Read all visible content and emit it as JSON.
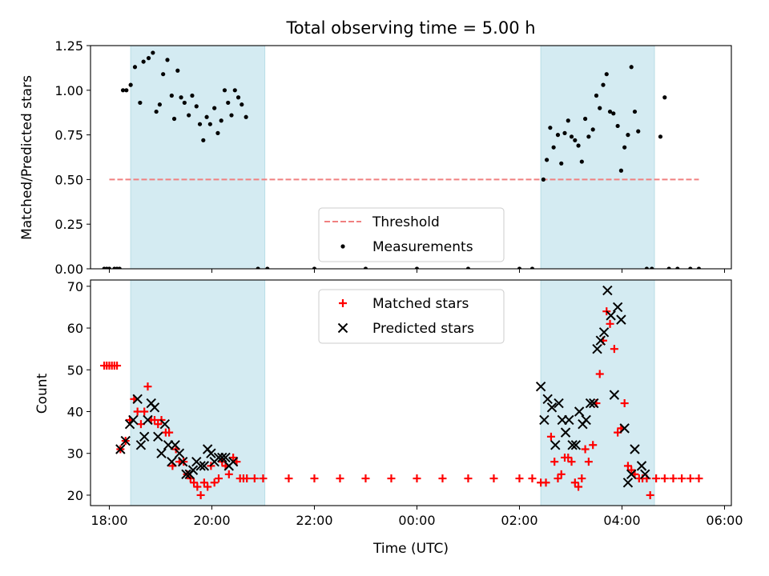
{
  "figure": {
    "title": "Total observing time = 5.00 h"
  },
  "chart_data": [
    {
      "type": "scatter",
      "ylabel": "Matched/Predicted stars",
      "xlabel": "",
      "x_axis": "time",
      "xlim": [
        "17:38",
        "06:08"
      ],
      "ylim": [
        0,
        1.25
      ],
      "yticks": [
        "0.00",
        "0.25",
        "0.50",
        "0.75",
        "1.00",
        "1.25"
      ],
      "xticks_labeled": false,
      "grid": false,
      "legend_position": "lower-center",
      "shaded_intervals": [
        [
          "18:25",
          "21:02"
        ],
        [
          "02:25",
          "04:38"
        ]
      ],
      "shade_color": "#d4ebf2",
      "series": [
        {
          "name": "Threshold",
          "kind": "line",
          "style": "dashed",
          "color": "#f08080",
          "x": [
            "18:00",
            "05:30"
          ],
          "y": [
            0.5,
            0.5
          ]
        },
        {
          "name": "Measurements",
          "kind": "points",
          "color": "#000000",
          "points": [
            [
              "17:54",
              0
            ],
            [
              "17:57",
              0
            ],
            [
              "18:00",
              0
            ],
            [
              "18:06",
              0
            ],
            [
              "18:09",
              0
            ],
            [
              "18:12",
              0
            ],
            [
              "18:16",
              1.0
            ],
            [
              "18:20",
              1.0
            ],
            [
              "18:25",
              1.03
            ],
            [
              "18:30",
              1.13
            ],
            [
              "18:36",
              0.93
            ],
            [
              "18:40",
              1.16
            ],
            [
              "18:46",
              1.18
            ],
            [
              "18:51",
              1.21
            ],
            [
              "18:55",
              0.88
            ],
            [
              "18:59",
              0.92
            ],
            [
              "19:03",
              1.09
            ],
            [
              "19:08",
              1.17
            ],
            [
              "19:13",
              0.97
            ],
            [
              "19:16",
              0.84
            ],
            [
              "19:20",
              1.11
            ],
            [
              "19:24",
              0.96
            ],
            [
              "19:28",
              0.93
            ],
            [
              "19:33",
              0.86
            ],
            [
              "19:37",
              0.97
            ],
            [
              "19:42",
              0.91
            ],
            [
              "19:46",
              0.81
            ],
            [
              "19:50",
              0.72
            ],
            [
              "19:54",
              0.85
            ],
            [
              "19:58",
              0.81
            ],
            [
              "20:03",
              0.9
            ],
            [
              "20:07",
              0.76
            ],
            [
              "20:11",
              0.83
            ],
            [
              "20:15",
              1.0
            ],
            [
              "20:19",
              0.93
            ],
            [
              "20:23",
              0.86
            ],
            [
              "20:27",
              1.0
            ],
            [
              "20:31",
              0.96
            ],
            [
              "20:35",
              0.92
            ],
            [
              "20:40",
              0.85
            ],
            [
              "20:54",
              0
            ],
            [
              "21:05",
              0
            ],
            [
              "22:00",
              0
            ],
            [
              "23:00",
              0
            ],
            [
              "00:00",
              0
            ],
            [
              "01:00",
              0
            ],
            [
              "02:00",
              0
            ],
            [
              "02:15",
              0
            ],
            [
              "02:28",
              0.5
            ],
            [
              "02:32",
              0.61
            ],
            [
              "02:36",
              0.79
            ],
            [
              "02:40",
              0.68
            ],
            [
              "02:45",
              0.75
            ],
            [
              "02:49",
              0.59
            ],
            [
              "02:53",
              0.76
            ],
            [
              "02:57",
              0.83
            ],
            [
              "03:01",
              0.74
            ],
            [
              "03:05",
              0.72
            ],
            [
              "03:09",
              0.69
            ],
            [
              "03:13",
              0.6
            ],
            [
              "03:17",
              0.84
            ],
            [
              "03:21",
              0.74
            ],
            [
              "03:26",
              0.78
            ],
            [
              "03:30",
              0.97
            ],
            [
              "03:34",
              0.9
            ],
            [
              "03:38",
              1.03
            ],
            [
              "03:42",
              1.09
            ],
            [
              "03:46",
              0.88
            ],
            [
              "03:50",
              0.87
            ],
            [
              "03:55",
              0.8
            ],
            [
              "03:59",
              0.55
            ],
            [
              "04:03",
              0.68
            ],
            [
              "04:07",
              0.75
            ],
            [
              "04:11",
              1.13
            ],
            [
              "04:15",
              0.88
            ],
            [
              "04:19",
              0.77
            ],
            [
              "04:29",
              0
            ],
            [
              "04:35",
              0
            ],
            [
              "04:45",
              0.74
            ],
            [
              "04:50",
              0.96
            ],
            [
              "04:55",
              0
            ],
            [
              "05:05",
              0
            ],
            [
              "05:20",
              0
            ],
            [
              "05:30",
              0
            ]
          ]
        }
      ]
    },
    {
      "type": "scatter",
      "ylabel": "Count",
      "xlabel": "Time (UTC)",
      "x_axis": "time",
      "xlim": [
        "17:38",
        "06:08"
      ],
      "ylim": [
        17.5,
        71.5
      ],
      "yticks": [
        "20",
        "30",
        "40",
        "50",
        "60",
        "70"
      ],
      "xticks": [
        "18:00",
        "20:00",
        "22:00",
        "00:00",
        "02:00",
        "04:00",
        "06:00"
      ],
      "grid": false,
      "legend_position": "upper-center",
      "shaded_intervals": [
        [
          "18:25",
          "21:02"
        ],
        [
          "02:25",
          "04:38"
        ]
      ],
      "shade_color": "#d4ebf2",
      "series": [
        {
          "name": "Matched stars",
          "marker": "plus",
          "color": "#ff0000",
          "points": [
            [
              "17:54",
              51
            ],
            [
              "17:57",
              51
            ],
            [
              "18:00",
              51
            ],
            [
              "18:03",
              51
            ],
            [
              "18:06",
              51
            ],
            [
              "18:09",
              51
            ],
            [
              "18:13",
              31
            ],
            [
              "18:19",
              33
            ],
            [
              "18:24",
              38
            ],
            [
              "18:29",
              43
            ],
            [
              "18:33",
              40
            ],
            [
              "18:37",
              37
            ],
            [
              "18:41",
              40
            ],
            [
              "18:45",
              46
            ],
            [
              "18:49",
              38
            ],
            [
              "18:53",
              38
            ],
            [
              "18:57",
              37
            ],
            [
              "19:01",
              38
            ],
            [
              "19:06",
              35
            ],
            [
              "19:10",
              35
            ],
            [
              "19:14",
              27
            ],
            [
              "19:18",
              31
            ],
            [
              "19:22",
              28
            ],
            [
              "19:27",
              28
            ],
            [
              "19:31",
              25
            ],
            [
              "19:35",
              24
            ],
            [
              "19:39",
              23
            ],
            [
              "19:43",
              22
            ],
            [
              "19:47",
              20
            ],
            [
              "19:51",
              23
            ],
            [
              "19:55",
              22
            ],
            [
              "19:59",
              27
            ],
            [
              "20:03",
              23
            ],
            [
              "20:08",
              24
            ],
            [
              "20:12",
              28
            ],
            [
              "20:16",
              27
            ],
            [
              "20:20",
              25
            ],
            [
              "20:25",
              29
            ],
            [
              "20:29",
              28
            ],
            [
              "20:33",
              24
            ],
            [
              "20:37",
              24
            ],
            [
              "20:41",
              24
            ],
            [
              "20:50",
              24
            ],
            [
              "21:00",
              24
            ],
            [
              "21:30",
              24
            ],
            [
              "22:00",
              24
            ],
            [
              "22:30",
              24
            ],
            [
              "23:00",
              24
            ],
            [
              "23:30",
              24
            ],
            [
              "00:00",
              24
            ],
            [
              "00:30",
              24
            ],
            [
              "01:00",
              24
            ],
            [
              "01:30",
              24
            ],
            [
              "02:00",
              24
            ],
            [
              "02:15",
              24
            ],
            [
              "02:25",
              23
            ],
            [
              "02:31",
              23
            ],
            [
              "02:37",
              34
            ],
            [
              "02:41",
              28
            ],
            [
              "02:45",
              24
            ],
            [
              "02:49",
              25
            ],
            [
              "02:53",
              29
            ],
            [
              "02:57",
              29
            ],
            [
              "03:01",
              28
            ],
            [
              "03:05",
              23
            ],
            [
              "03:09",
              22
            ],
            [
              "03:13",
              24
            ],
            [
              "03:17",
              31
            ],
            [
              "03:21",
              28
            ],
            [
              "03:26",
              32
            ],
            [
              "03:30",
              42
            ],
            [
              "03:34",
              49
            ],
            [
              "03:38",
              57
            ],
            [
              "03:42",
              64
            ],
            [
              "03:46",
              61
            ],
            [
              "03:51",
              55
            ],
            [
              "03:55",
              35
            ],
            [
              "03:59",
              36
            ],
            [
              "04:03",
              42
            ],
            [
              "04:07",
              27
            ],
            [
              "04:11",
              26
            ],
            [
              "04:15",
              25
            ],
            [
              "04:20",
              24
            ],
            [
              "04:24",
              24
            ],
            [
              "04:29",
              24
            ],
            [
              "04:33",
              20
            ],
            [
              "04:40",
              24
            ],
            [
              "04:50",
              24
            ],
            [
              "05:00",
              24
            ],
            [
              "05:10",
              24
            ],
            [
              "05:20",
              24
            ],
            [
              "05:30",
              24
            ]
          ]
        },
        {
          "name": "Predicted stars",
          "marker": "x",
          "color": "#000000",
          "points": [
            [
              "18:13",
              31
            ],
            [
              "18:19",
              33
            ],
            [
              "18:24",
              37
            ],
            [
              "18:28",
              38
            ],
            [
              "18:33",
              43
            ],
            [
              "18:37",
              32
            ],
            [
              "18:41",
              34
            ],
            [
              "18:45",
              38
            ],
            [
              "18:49",
              42
            ],
            [
              "18:53",
              41
            ],
            [
              "18:57",
              34
            ],
            [
              "19:01",
              30
            ],
            [
              "19:05",
              37
            ],
            [
              "19:09",
              32
            ],
            [
              "19:13",
              28
            ],
            [
              "19:17",
              32
            ],
            [
              "19:22",
              30
            ],
            [
              "19:26",
              28
            ],
            [
              "19:30",
              25
            ],
            [
              "19:34",
              25
            ],
            [
              "19:38",
              26
            ],
            [
              "19:42",
              28
            ],
            [
              "19:47",
              27
            ],
            [
              "19:51",
              27
            ],
            [
              "19:55",
              31
            ],
            [
              "19:59",
              30
            ],
            [
              "20:03",
              28
            ],
            [
              "20:08",
              29
            ],
            [
              "20:12",
              29
            ],
            [
              "20:16",
              29
            ],
            [
              "20:20",
              27
            ],
            [
              "20:25",
              28
            ],
            [
              "02:25",
              46
            ],
            [
              "02:29",
              38
            ],
            [
              "02:33",
              43
            ],
            [
              "02:38",
              41
            ],
            [
              "02:42",
              32
            ],
            [
              "02:46",
              42
            ],
            [
              "02:50",
              38
            ],
            [
              "02:54",
              35
            ],
            [
              "02:58",
              38
            ],
            [
              "03:02",
              32
            ],
            [
              "03:06",
              32
            ],
            [
              "03:10",
              40
            ],
            [
              "03:14",
              37
            ],
            [
              "03:18",
              38
            ],
            [
              "03:23",
              42
            ],
            [
              "03:27",
              42
            ],
            [
              "03:31",
              55
            ],
            [
              "03:35",
              57
            ],
            [
              "03:39",
              59
            ],
            [
              "03:43",
              69
            ],
            [
              "03:47",
              63
            ],
            [
              "03:51",
              44
            ],
            [
              "03:55",
              65
            ],
            [
              "03:59",
              62
            ],
            [
              "04:03",
              36
            ],
            [
              "04:07",
              23
            ],
            [
              "04:11",
              25
            ],
            [
              "04:15",
              31
            ],
            [
              "04:23",
              27
            ],
            [
              "04:27",
              25
            ]
          ]
        }
      ]
    }
  ]
}
